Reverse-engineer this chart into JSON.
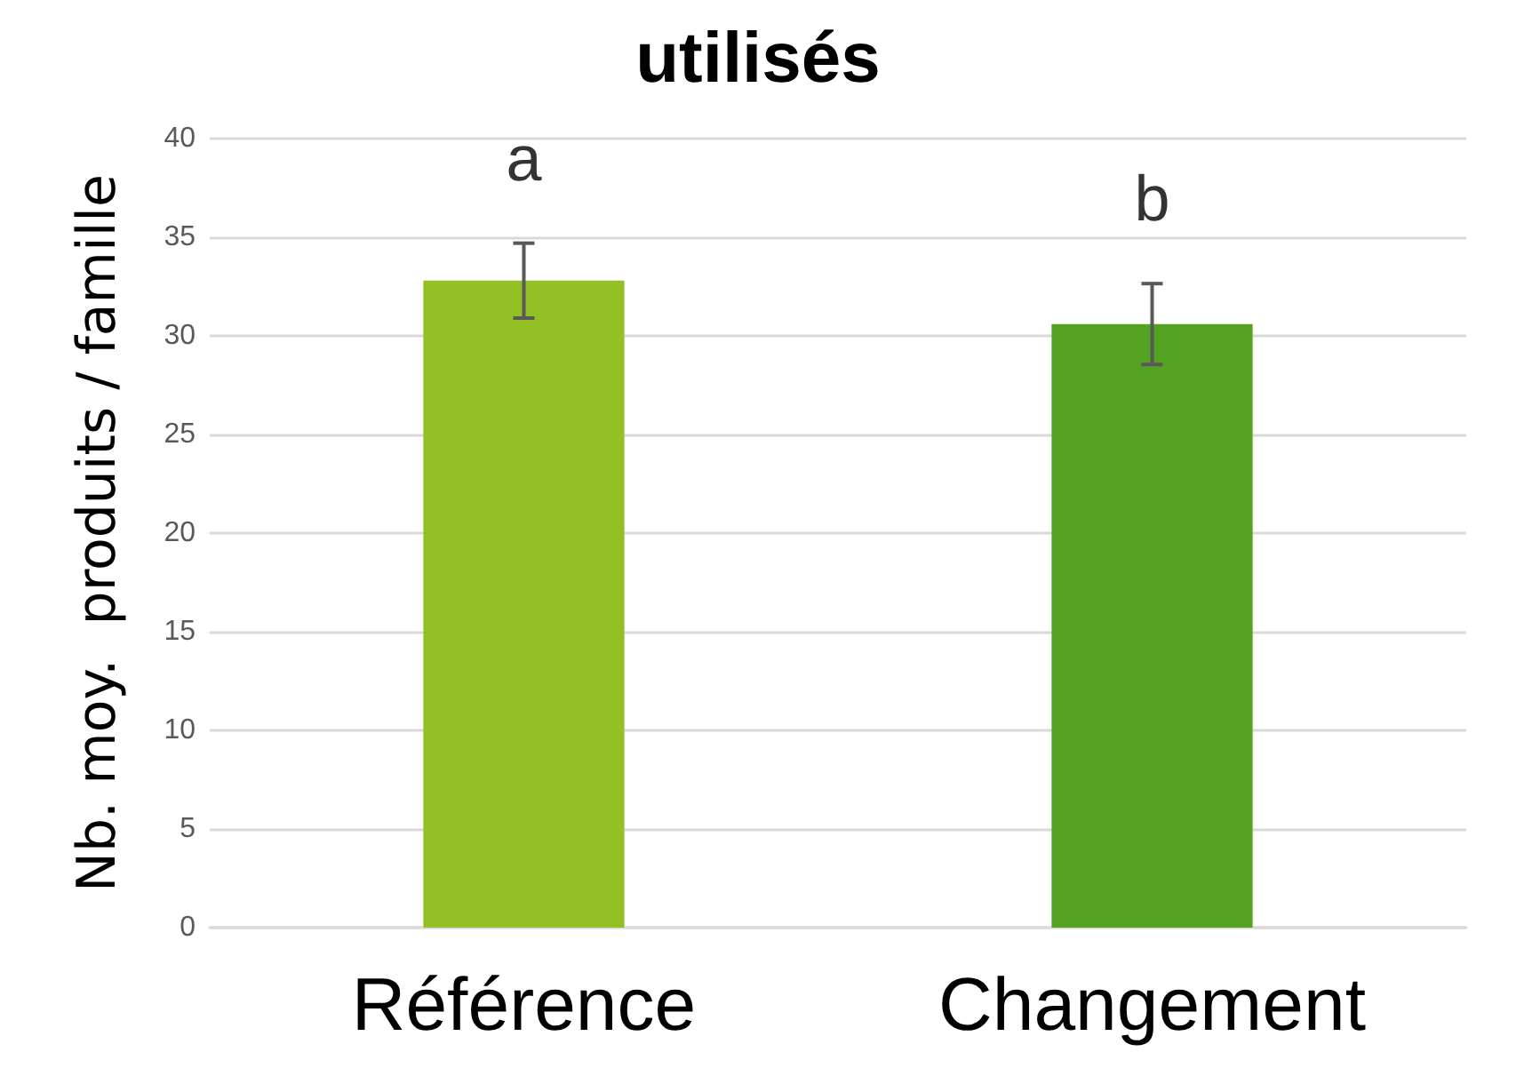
{
  "chart_data": {
    "type": "bar",
    "title": "utilisés",
    "ylabel": "Nb. moy.  produits / famille",
    "categories": [
      "Référence",
      "Changement"
    ],
    "values": [
      32.8,
      30.6
    ],
    "colors": [
      "#92c025",
      "#55a222"
    ],
    "errors": [
      1.9,
      2.05
    ],
    "ylim": [
      0,
      40
    ],
    "yticks": [
      0,
      5,
      10,
      15,
      20,
      25,
      30,
      35,
      40
    ],
    "grid": "y",
    "annotations": [
      "a",
      "b"
    ]
  }
}
